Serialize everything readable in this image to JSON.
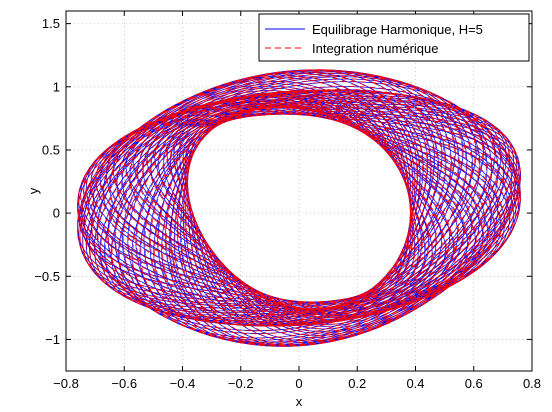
{
  "chart_data": {
    "type": "line",
    "title": "",
    "xlabel": "x",
    "ylabel": "y",
    "xlim": [
      -0.8,
      0.8
    ],
    "ylim": [
      -1.25,
      1.6
    ],
    "xticks": [
      -0.8,
      -0.6,
      -0.4,
      -0.2,
      0,
      0.2,
      0.4,
      0.6,
      0.8
    ],
    "xtick_labels": [
      "−0.8",
      "−0.6",
      "−0.4",
      "−0.2",
      "0",
      "0.2",
      "0.4",
      "0.6",
      "0.8"
    ],
    "yticks": [
      -1,
      -0.5,
      0,
      0.5,
      1,
      1.5
    ],
    "ytick_labels": [
      "−1",
      "−0.5",
      "0",
      "0.5",
      "1",
      "1.5"
    ],
    "grid": true,
    "legend_position": "top-right",
    "series": [
      {
        "name": "Equilibrage Harmonique, H=5",
        "color": "#0000ff",
        "style": "solid",
        "description_values": {
          "x_range": [
            -0.76,
            0.76
          ],
          "y_range": [
            -1.03,
            1.05
          ]
        }
      },
      {
        "name": "Integration numérique",
        "color": "#ff0000",
        "style": "dashed",
        "description_values": {
          "x_range": [
            -0.76,
            0.76
          ],
          "y_range": [
            -1.03,
            1.05
          ]
        }
      }
    ]
  }
}
